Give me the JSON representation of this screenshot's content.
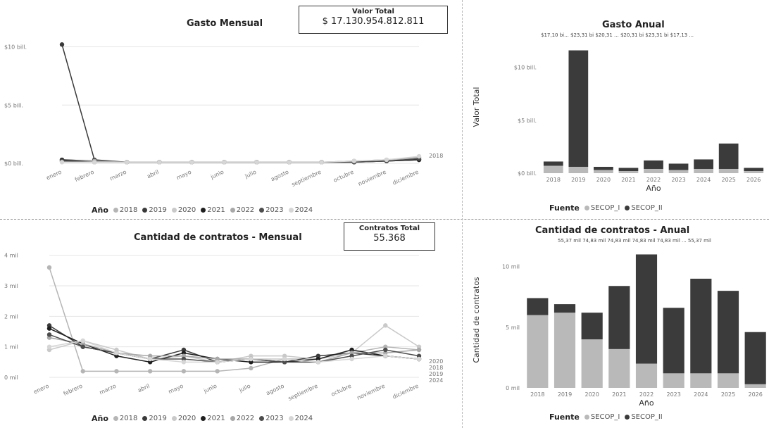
{
  "kpis": {
    "valor_total_label": "Valor Total",
    "valor_total_value": "$ 17.130.954.812.811",
    "contratos_total_label": "Contratos Total",
    "contratos_total_value": "55.368"
  },
  "colors": {
    "y2018": "#b5b5b5",
    "y2019": "#3a3a3a",
    "y2020": "#c9c9c9",
    "y2021": "#1f1f1f",
    "y2022": "#a8a8a8",
    "y2023": "#4d4d4d",
    "y2024": "#d6d6d6",
    "secop1": "#b9b9b9",
    "secop2": "#3b3b3b"
  },
  "months": [
    "enero",
    "febrero",
    "marzo",
    "abril",
    "mayo",
    "junio",
    "julio",
    "agosto",
    "septiembre",
    "octubre",
    "noviembre",
    "diciembre"
  ],
  "chart_data": [
    {
      "id": "gasto_mensual",
      "type": "line",
      "title": "Gasto Mensual",
      "ylabel": "",
      "yticks": [
        {
          "v": 0,
          "label": "$0 bill."
        },
        {
          "v": 5,
          "label": "$5 bill."
        },
        {
          "v": 10,
          "label": "$10 bill."
        }
      ],
      "ylim": [
        0,
        11
      ],
      "legend_title": "Año",
      "series": [
        {
          "name": "2018",
          "color_key": "y2018",
          "values": [
            0.3,
            0.2,
            0.1,
            0.1,
            0.1,
            0.1,
            0.1,
            0.1,
            0.1,
            0.2,
            0.3,
            0.5
          ]
        },
        {
          "name": "2019",
          "color_key": "y2019",
          "values": [
            10.2,
            0.3,
            0.1,
            0.1,
            0.1,
            0.1,
            0.1,
            0.1,
            0.1,
            0.1,
            0.2,
            0.3
          ]
        },
        {
          "name": "2020",
          "color_key": "y2020",
          "values": [
            0.2,
            0.2,
            0.1,
            0.1,
            0.1,
            0.1,
            0.1,
            0.1,
            0.1,
            0.1,
            0.2,
            0.4
          ]
        },
        {
          "name": "2021",
          "color_key": "y2021",
          "values": [
            0.3,
            0.2,
            0.1,
            0.1,
            0.1,
            0.1,
            0.1,
            0.1,
            0.1,
            0.1,
            0.2,
            0.3
          ]
        },
        {
          "name": "2022",
          "color_key": "y2022",
          "values": [
            0.2,
            0.2,
            0.1,
            0.1,
            0.1,
            0.1,
            0.1,
            0.1,
            0.1,
            0.2,
            0.3,
            0.5
          ]
        },
        {
          "name": "2023",
          "color_key": "y2023",
          "values": [
            0.2,
            0.1,
            0.1,
            0.1,
            0.1,
            0.1,
            0.1,
            0.1,
            0.1,
            0.1,
            0.2,
            0.4
          ]
        },
        {
          "name": "2024",
          "color_key": "y2024",
          "values": [
            0.1,
            0.1,
            0.1,
            0.1,
            0.1,
            0.1,
            0.1,
            0.1,
            0.1,
            0.2,
            0.3,
            0.6
          ]
        }
      ],
      "end_labels": [
        "2018"
      ]
    },
    {
      "id": "gasto_anual",
      "type": "bar",
      "title": "Gasto Anual",
      "top_labels_text": "$17,10 bi... $23,31 bi $20,31 ...   $20,31 bi $23,31 bi $17,13 ...",
      "ylabel": "Valor Total",
      "xlabel": "Año",
      "categories": [
        "2018",
        "2019",
        "2020",
        "2021",
        "2022",
        "2023",
        "2024",
        "2025",
        "2026"
      ],
      "yticks": [
        {
          "v": 0,
          "label": "$0 bill."
        },
        {
          "v": 5,
          "label": "$5 bill."
        },
        {
          "v": 10,
          "label": "$10 bill."
        }
      ],
      "ylim": [
        0,
        12.5
      ],
      "legend_title": "Fuente",
      "series": [
        {
          "name": "SECOP_I",
          "color_key": "secop1",
          "values": [
            0.7,
            0.6,
            0.3,
            0.2,
            0.4,
            0.3,
            0.4,
            0.4,
            0.2
          ]
        },
        {
          "name": "SECOP_II",
          "color_key": "secop2",
          "values": [
            0.4,
            11.0,
            0.3,
            0.3,
            0.8,
            0.6,
            0.9,
            2.4,
            0.3
          ]
        }
      ]
    },
    {
      "id": "contratos_mensual",
      "type": "line",
      "title": "Cantidad de contratos - Mensual",
      "ylabel": "",
      "yticks": [
        {
          "v": 0,
          "label": "0 mil"
        },
        {
          "v": 1,
          "label": "1 mil"
        },
        {
          "v": 2,
          "label": "2 mil"
        },
        {
          "v": 3,
          "label": "3 mil"
        },
        {
          "v": 4,
          "label": "4 mil"
        }
      ],
      "ylim": [
        0,
        4.2
      ],
      "legend_title": "Año",
      "series": [
        {
          "name": "2018",
          "color_key": "y2018",
          "values": [
            3.6,
            0.2,
            0.2,
            0.2,
            0.2,
            0.2,
            0.3,
            0.6,
            0.6,
            0.8,
            1.0,
            0.9
          ]
        },
        {
          "name": "2019",
          "color_key": "y2019",
          "values": [
            1.7,
            1.0,
            0.8,
            0.6,
            0.9,
            0.5,
            0.6,
            0.5,
            0.7,
            0.8,
            0.7,
            0.6
          ]
        },
        {
          "name": "2020",
          "color_key": "y2020",
          "values": [
            0.9,
            1.2,
            0.9,
            0.6,
            0.7,
            0.5,
            0.7,
            0.7,
            0.6,
            0.8,
            1.7,
            1.0
          ]
        },
        {
          "name": "2021",
          "color_key": "y2021",
          "values": [
            1.6,
            1.1,
            0.7,
            0.5,
            0.8,
            0.6,
            0.5,
            0.5,
            0.6,
            0.9,
            0.7,
            0.6
          ]
        },
        {
          "name": "2022",
          "color_key": "y2022",
          "values": [
            1.3,
            1.1,
            0.8,
            0.7,
            0.7,
            0.6,
            0.6,
            0.6,
            0.5,
            0.8,
            0.8,
            0.9
          ]
        },
        {
          "name": "2023",
          "color_key": "y2023",
          "values": [
            1.4,
            1.0,
            0.8,
            0.6,
            0.6,
            0.5,
            0.6,
            0.5,
            0.5,
            0.7,
            0.9,
            0.7
          ]
        },
        {
          "name": "2024",
          "color_key": "y2024",
          "values": [
            1.0,
            1.2,
            0.8,
            0.6,
            0.5,
            0.5,
            0.6,
            0.6,
            0.5,
            0.6,
            0.7,
            0.6
          ]
        }
      ],
      "end_labels": [
        "2020",
        "2018",
        "2019",
        "2024"
      ]
    },
    {
      "id": "contratos_anual",
      "type": "bar",
      "title": "Cantidad de contratos - Anual",
      "top_labels_text": "55,37 mil 74,83 mil 74,83 mil 74,83 mil  74,83 mil ...  55,37 mil",
      "ylabel": "Cantidad de contratos",
      "xlabel": "Año",
      "categories": [
        "2018",
        "2019",
        "2020",
        "2021",
        "2022",
        "2023",
        "2024",
        "2025",
        "2026"
      ],
      "yticks": [
        {
          "v": 0,
          "label": "0 mil"
        },
        {
          "v": 5,
          "label": "5 mil"
        },
        {
          "v": 10,
          "label": "10 mil"
        }
      ],
      "ylim": [
        0,
        11.2
      ],
      "legend_title": "Fuente",
      "series": [
        {
          "name": "SECOP_I",
          "color_key": "secop1",
          "values": [
            6.0,
            6.2,
            4.0,
            3.2,
            2.0,
            1.2,
            1.2,
            1.2,
            0.3
          ]
        },
        {
          "name": "SECOP_II",
          "color_key": "secop2",
          "values": [
            1.4,
            0.7,
            2.2,
            5.2,
            9.0,
            5.4,
            7.8,
            6.8,
            4.3
          ]
        }
      ]
    }
  ]
}
